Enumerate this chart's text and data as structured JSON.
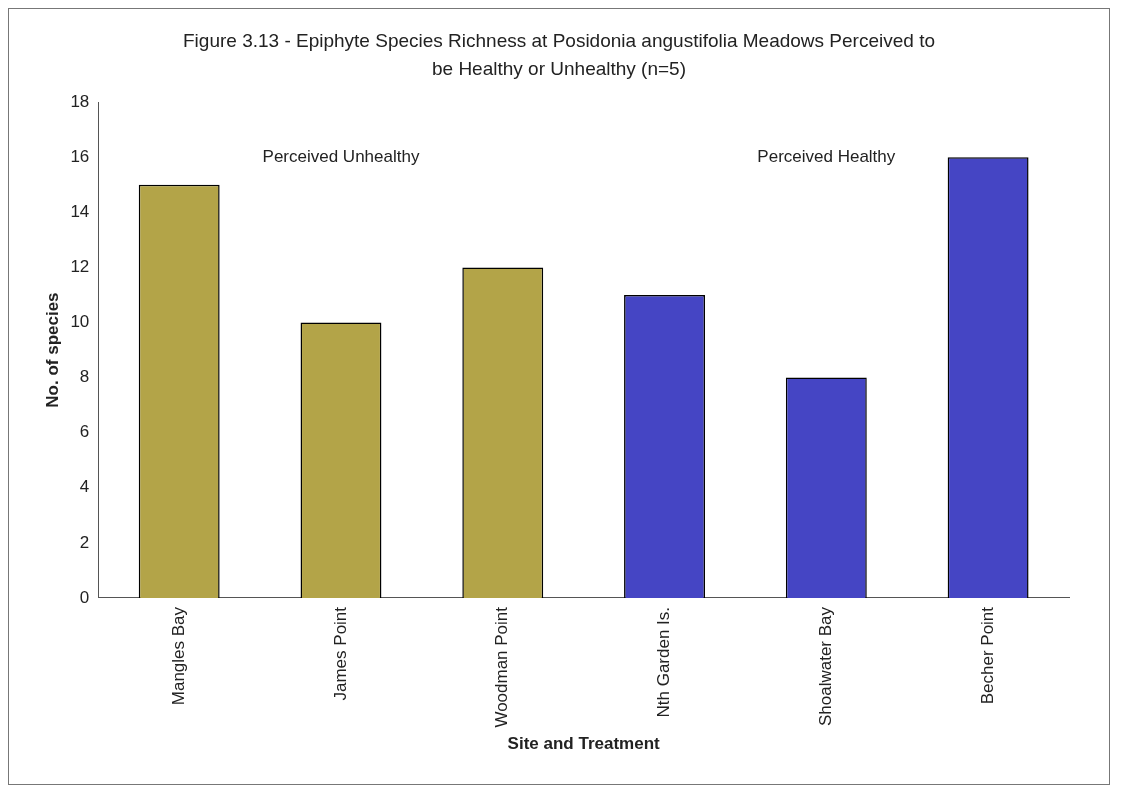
{
  "chart_data": {
    "type": "bar",
    "title": "Figure 3.13 - Epiphyte Species Richness at Posidonia angustifolia Meadows Perceived to be Healthy or Unhealthy (n=5)",
    "xlabel": "Site and Treatment",
    "ylabel": "No. of species",
    "categories": [
      "Mangles Bay",
      "James Point",
      "Woodman Point",
      "Nth Garden Is.",
      "Shoalwater Bay",
      "Becher Point"
    ],
    "values": [
      15,
      10,
      12,
      11,
      8,
      16
    ],
    "colors": [
      "#b3a448",
      "#b3a448",
      "#b3a448",
      "#4545c4",
      "#4545c4",
      "#4545c4"
    ],
    "ylim": [
      0,
      18
    ],
    "yticks": [
      0,
      2,
      4,
      6,
      8,
      10,
      12,
      14,
      16,
      18
    ],
    "annotations": [
      "Perceived Unhealthy",
      "Perceived Healthy"
    ],
    "grid": false,
    "legend": false
  }
}
